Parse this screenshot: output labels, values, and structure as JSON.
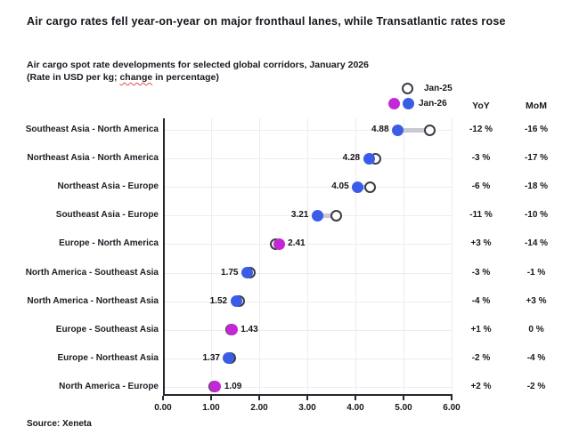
{
  "header": {
    "title": "Air cargo rates fell year-on-year on major fronthaul lanes, while Transatlantic rates rose"
  },
  "chart_header": {
    "subtitle": "Air cargo spot rate developments for selected global corridors, January 2026",
    "note_prefix": "(Rate in USD per kg; ",
    "note_underlined_word": "change",
    "note_suffix": " in percentage)"
  },
  "legend": {
    "jan25_label": "Jan-25",
    "jan26_label": "Jan-26"
  },
  "table_headers": {
    "yoy": "YoY",
    "mom": "MoM"
  },
  "source": "Source: Xeneta",
  "colors": {
    "jan26_up": "#c328d6",
    "jan26_down": "#3a5ce6",
    "jan25_fill": "#ffffff",
    "jan25_border": "#3c3c44",
    "connector": "#c9c9d0",
    "grid": "#ededf0",
    "axis": "#26262e",
    "text": "#17171f"
  },
  "chart_data": {
    "type": "scatter",
    "variant": "dumbbell",
    "title": "Air cargo spot rate developments for selected global corridors, January 2026",
    "xlabel": "Rate in USD per kg",
    "ylabel": "",
    "xlim": [
      0,
      6
    ],
    "grid": true,
    "legend_position": "top-right",
    "x_tick_labels": [
      "0.00",
      "1.00",
      "2.00",
      "3.00",
      "4.00",
      "5.00",
      "6.00"
    ],
    "series": [
      {
        "name": "Jan-25",
        "style": "open-circle"
      },
      {
        "name": "Jan-26",
        "style": "filled-circle, magenta = rose YoY, blue = fell YoY"
      }
    ],
    "rows": [
      {
        "corridor": "Southeast Asia - North America",
        "jan26": 4.88,
        "jan25_est": 5.55,
        "yoy": "-12 %",
        "mom": "-16 %",
        "trend": "down"
      },
      {
        "corridor": "Northeast Asia - North America",
        "jan26": 4.28,
        "jan25_est": 4.41,
        "yoy": "-3 %",
        "mom": "-17 %",
        "trend": "down"
      },
      {
        "corridor": "Northeast Asia - Europe",
        "jan26": 4.05,
        "jan25_est": 4.31,
        "yoy": "-6 %",
        "mom": "-18 %",
        "trend": "down"
      },
      {
        "corridor": "Southeast Asia - Europe",
        "jan26": 3.21,
        "jan25_est": 3.61,
        "yoy": "-11 %",
        "mom": "-10 %",
        "trend": "down"
      },
      {
        "corridor": "Europe - North America",
        "jan26": 2.41,
        "jan25_est": 2.34,
        "yoy": "+3 %",
        "mom": "-14 %",
        "trend": "up"
      },
      {
        "corridor": "North America - Southeast Asia",
        "jan26": 1.75,
        "jan25_est": 1.8,
        "yoy": "-3 %",
        "mom": "-1 %",
        "trend": "down"
      },
      {
        "corridor": "North America - Northeast Asia",
        "jan26": 1.52,
        "jan25_est": 1.58,
        "yoy": "-4 %",
        "mom": "+3 %",
        "trend": "down"
      },
      {
        "corridor": "Europe - Southeast Asia",
        "jan26": 1.43,
        "jan25_est": 1.42,
        "yoy": "+1 %",
        "mom": "0 %",
        "trend": "up"
      },
      {
        "corridor": "Europe - Northeast Asia",
        "jan26": 1.37,
        "jan25_est": 1.4,
        "yoy": "-2 %",
        "mom": "-4 %",
        "trend": "down"
      },
      {
        "corridor": "North America - Europe",
        "jan26": 1.09,
        "jan25_est": 1.07,
        "yoy": "+2 %",
        "mom": "-2 %",
        "trend": "up"
      }
    ]
  }
}
